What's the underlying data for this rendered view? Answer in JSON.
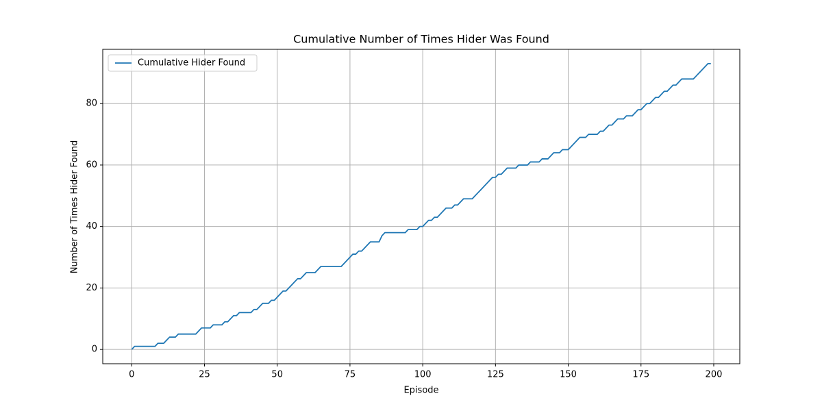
{
  "chart_data": {
    "type": "line",
    "title": "Cumulative Number of Times Hider Was Found",
    "x_label": "Episode",
    "y_label": "Number of Times Hider Found",
    "x": [
      0,
      1,
      2,
      3,
      4,
      5,
      6,
      7,
      8,
      9,
      10,
      11,
      12,
      13,
      14,
      15,
      16,
      17,
      18,
      19,
      20,
      21,
      22,
      23,
      24,
      25,
      26,
      27,
      28,
      29,
      30,
      31,
      32,
      33,
      34,
      35,
      36,
      37,
      38,
      39,
      40,
      41,
      42,
      43,
      44,
      45,
      46,
      47,
      48,
      49,
      50,
      51,
      52,
      53,
      54,
      55,
      56,
      57,
      58,
      59,
      60,
      61,
      62,
      63,
      64,
      65,
      66,
      67,
      68,
      69,
      70,
      71,
      72,
      73,
      74,
      75,
      76,
      77,
      78,
      79,
      80,
      81,
      82,
      83,
      84,
      85,
      86,
      87,
      88,
      89,
      90,
      91,
      92,
      93,
      94,
      95,
      96,
      97,
      98,
      99,
      100,
      101,
      102,
      103,
      104,
      105,
      106,
      107,
      108,
      109,
      110,
      111,
      112,
      113,
      114,
      115,
      116,
      117,
      118,
      119,
      120,
      121,
      122,
      123,
      124,
      125,
      126,
      127,
      128,
      129,
      130,
      131,
      132,
      133,
      134,
      135,
      136,
      137,
      138,
      139,
      140,
      141,
      142,
      143,
      144,
      145,
      146,
      147,
      148,
      149,
      150,
      151,
      152,
      153,
      154,
      155,
      156,
      157,
      158,
      159,
      160,
      161,
      162,
      163,
      164,
      165,
      166,
      167,
      168,
      169,
      170,
      171,
      172,
      173,
      174,
      175,
      176,
      177,
      178,
      179,
      180,
      181,
      182,
      183,
      184,
      185,
      186,
      187,
      188,
      189,
      190,
      191,
      192,
      193,
      194,
      195,
      196,
      197,
      198,
      199
    ],
    "series": [
      {
        "name": "Cumulative Hider Found",
        "color": "#1f77b4",
        "values": [
          0,
          1,
          1,
          1,
          1,
          1,
          1,
          1,
          1,
          2,
          2,
          2,
          3,
          4,
          4,
          4,
          5,
          5,
          5,
          5,
          5,
          5,
          5,
          6,
          7,
          7,
          7,
          7,
          8,
          8,
          8,
          8,
          9,
          9,
          10,
          11,
          11,
          12,
          12,
          12,
          12,
          12,
          13,
          13,
          14,
          15,
          15,
          15,
          16,
          16,
          17,
          18,
          19,
          19,
          20,
          21,
          22,
          23,
          23,
          24,
          25,
          25,
          25,
          25,
          26,
          27,
          27,
          27,
          27,
          27,
          27,
          27,
          27,
          28,
          29,
          30,
          31,
          31,
          32,
          32,
          33,
          34,
          35,
          35,
          35,
          35,
          37,
          38,
          38,
          38,
          38,
          38,
          38,
          38,
          38,
          39,
          39,
          39,
          39,
          40,
          40,
          41,
          42,
          42,
          43,
          43,
          44,
          45,
          46,
          46,
          46,
          47,
          47,
          48,
          49,
          49,
          49,
          49,
          50,
          51,
          52,
          53,
          54,
          55,
          56,
          56,
          57,
          57,
          58,
          59,
          59,
          59,
          59,
          60,
          60,
          60,
          60,
          61,
          61,
          61,
          61,
          62,
          62,
          62,
          63,
          64,
          64,
          64,
          65,
          65,
          65,
          66,
          67,
          68,
          69,
          69,
          69,
          70,
          70,
          70,
          70,
          71,
          71,
          72,
          73,
          73,
          74,
          75,
          75,
          75,
          76,
          76,
          76,
          77,
          78,
          78,
          79,
          80,
          80,
          81,
          82,
          82,
          83,
          84,
          84,
          85,
          86,
          86,
          87,
          88,
          88,
          88,
          88,
          88,
          89,
          90,
          91,
          92,
          93,
          93
        ]
      }
    ],
    "xlim": [
      -9.95,
      208.95
    ],
    "ylim": [
      -4.65,
      97.65
    ],
    "xticks": [
      0,
      25,
      50,
      75,
      100,
      125,
      150,
      175,
      200
    ],
    "yticks": [
      0,
      20,
      40,
      60,
      80
    ],
    "grid": true,
    "legend": "upper left"
  }
}
